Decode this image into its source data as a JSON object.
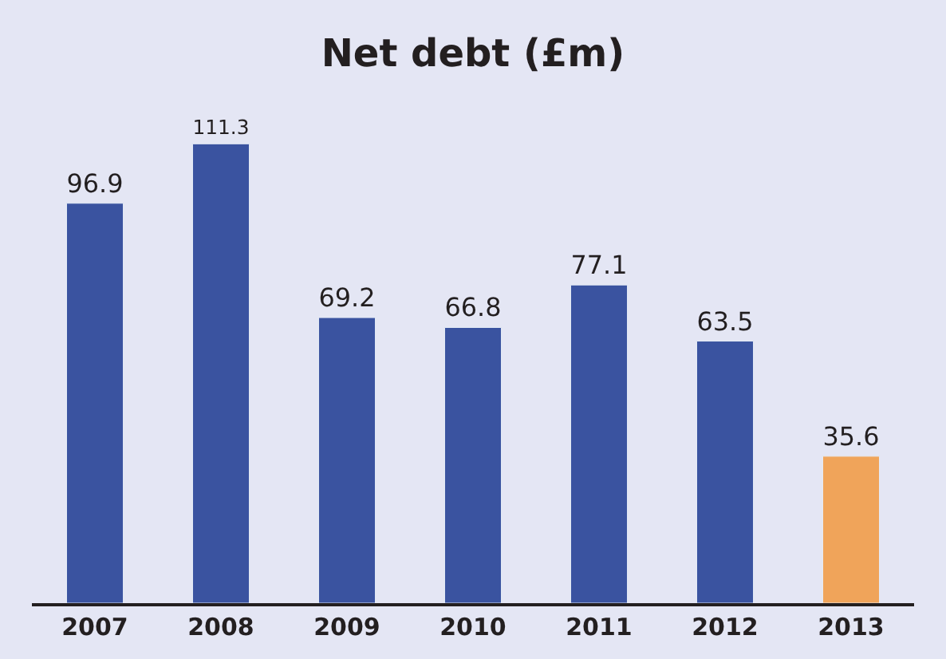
{
  "chart_data": {
    "type": "bar",
    "title": "Net debt (£m)",
    "categories": [
      "2007",
      "2008",
      "2009",
      "2010",
      "2011",
      "2012",
      "2013"
    ],
    "values": [
      96.9,
      111.3,
      69.2,
      66.8,
      77.1,
      63.5,
      35.6
    ],
    "colors": [
      "#3a53a0",
      "#3a53a0",
      "#3a53a0",
      "#3a53a0",
      "#3a53a0",
      "#3a53a0",
      "#f0a45a"
    ],
    "data_labels": true,
    "grid": false,
    "legend": false
  }
}
